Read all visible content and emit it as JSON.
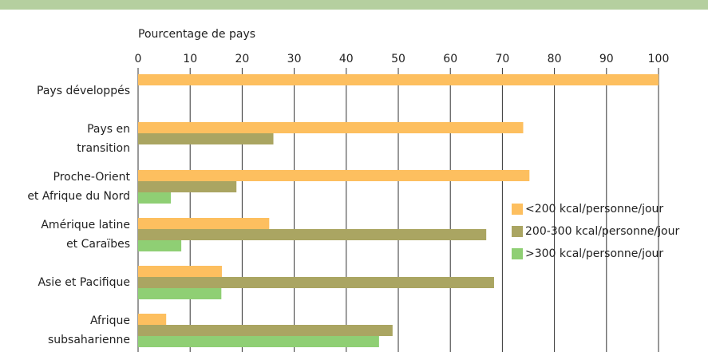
{
  "chart_data": {
    "type": "bar",
    "orientation": "horizontal",
    "x_label": "Pourcentage de pays",
    "categories": [
      "Pays développés",
      "Pays en\ntransition",
      "Proche-Orient\net Afrique du Nord",
      "Amérique latine\net Caraïbes",
      "Asie et Pacifique",
      "Afrique\nsubsaharienne"
    ],
    "series": [
      {
        "name": "<200 kcal/personne/jour",
        "color": "#fdbf5f",
        "values": [
          100,
          74,
          75.2,
          25.2,
          16.1,
          5.4
        ]
      },
      {
        "name": "200-300 kcal/personne/jour",
        "color": "#aaa562",
        "values": [
          0,
          26,
          18.9,
          66.9,
          68.4,
          48.9
        ]
      },
      {
        "name": ">300 kcal/personne/jour",
        "color": "#8fcf74",
        "values": [
          0,
          0,
          6.3,
          8.3,
          16,
          46.3
        ]
      }
    ],
    "xlim": [
      0,
      100
    ],
    "xticks": [
      0,
      10,
      20,
      30,
      40,
      50,
      60,
      70,
      80,
      90,
      100
    ],
    "grid": true
  }
}
